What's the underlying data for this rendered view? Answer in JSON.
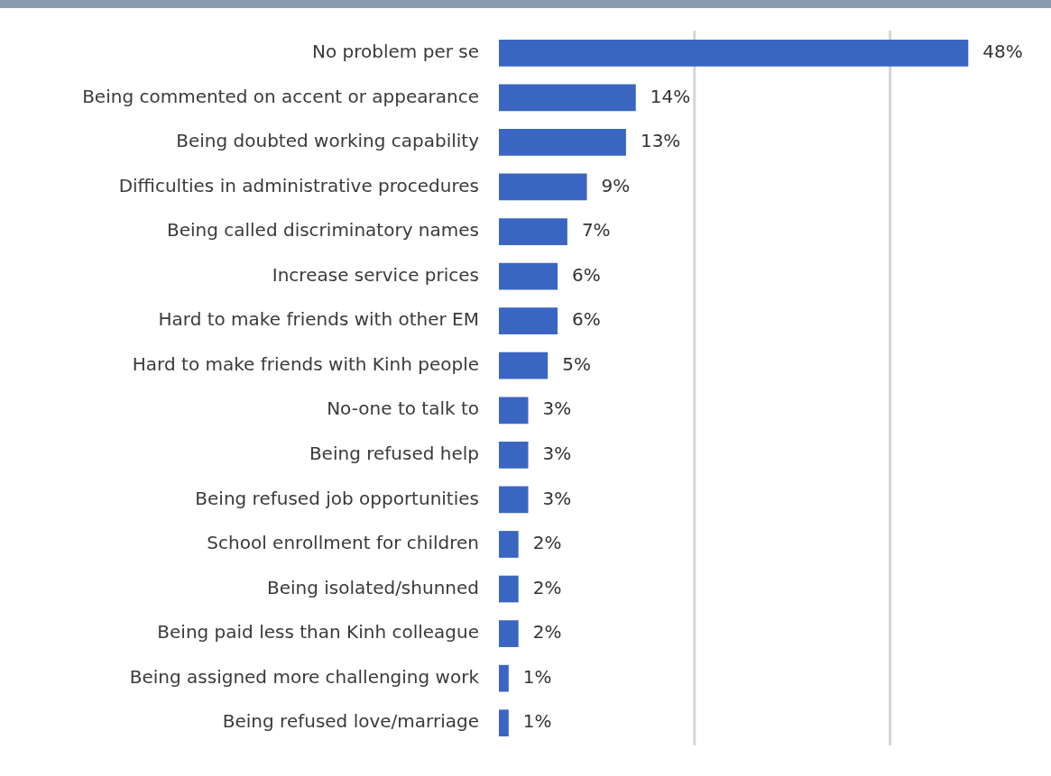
{
  "chart_data": {
    "type": "bar",
    "orientation": "horizontal",
    "categories": [
      "No problem per se",
      "Being commented on accent or appearance",
      "Being doubted working capability",
      "Difficulties in administrative procedures",
      "Being called discriminatory names",
      "Increase service prices",
      "Hard to make friends with other EM",
      "Hard to make friends with Kinh people",
      "No-one to talk to",
      "Being refused help",
      "Being refused job opportunities",
      "School enrollment for children",
      "Being isolated/shunned",
      "Being paid less than Kinh colleague",
      "Being assigned more challenging work",
      "Being refused love/marriage"
    ],
    "values": [
      48,
      14,
      13,
      9,
      7,
      6,
      6,
      5,
      3,
      3,
      3,
      2,
      2,
      2,
      1,
      1
    ],
    "color": "#3a66c2",
    "ref_lines": [
      {
        "axis": "x",
        "value": 20,
        "color": "#d6d6d6"
      },
      {
        "axis": "x",
        "value": 40,
        "color": "#d6d6d6"
      }
    ],
    "tick_labels": "y",
    "legend": false,
    "data_labels": true,
    "value_labels": [
      "48%",
      "14%",
      "13%",
      "9%",
      "7%",
      "6%",
      "6%",
      "5%",
      "3%",
      "3%",
      "3%",
      "2%",
      "2%",
      "2%",
      "1%",
      "1%"
    ]
  }
}
